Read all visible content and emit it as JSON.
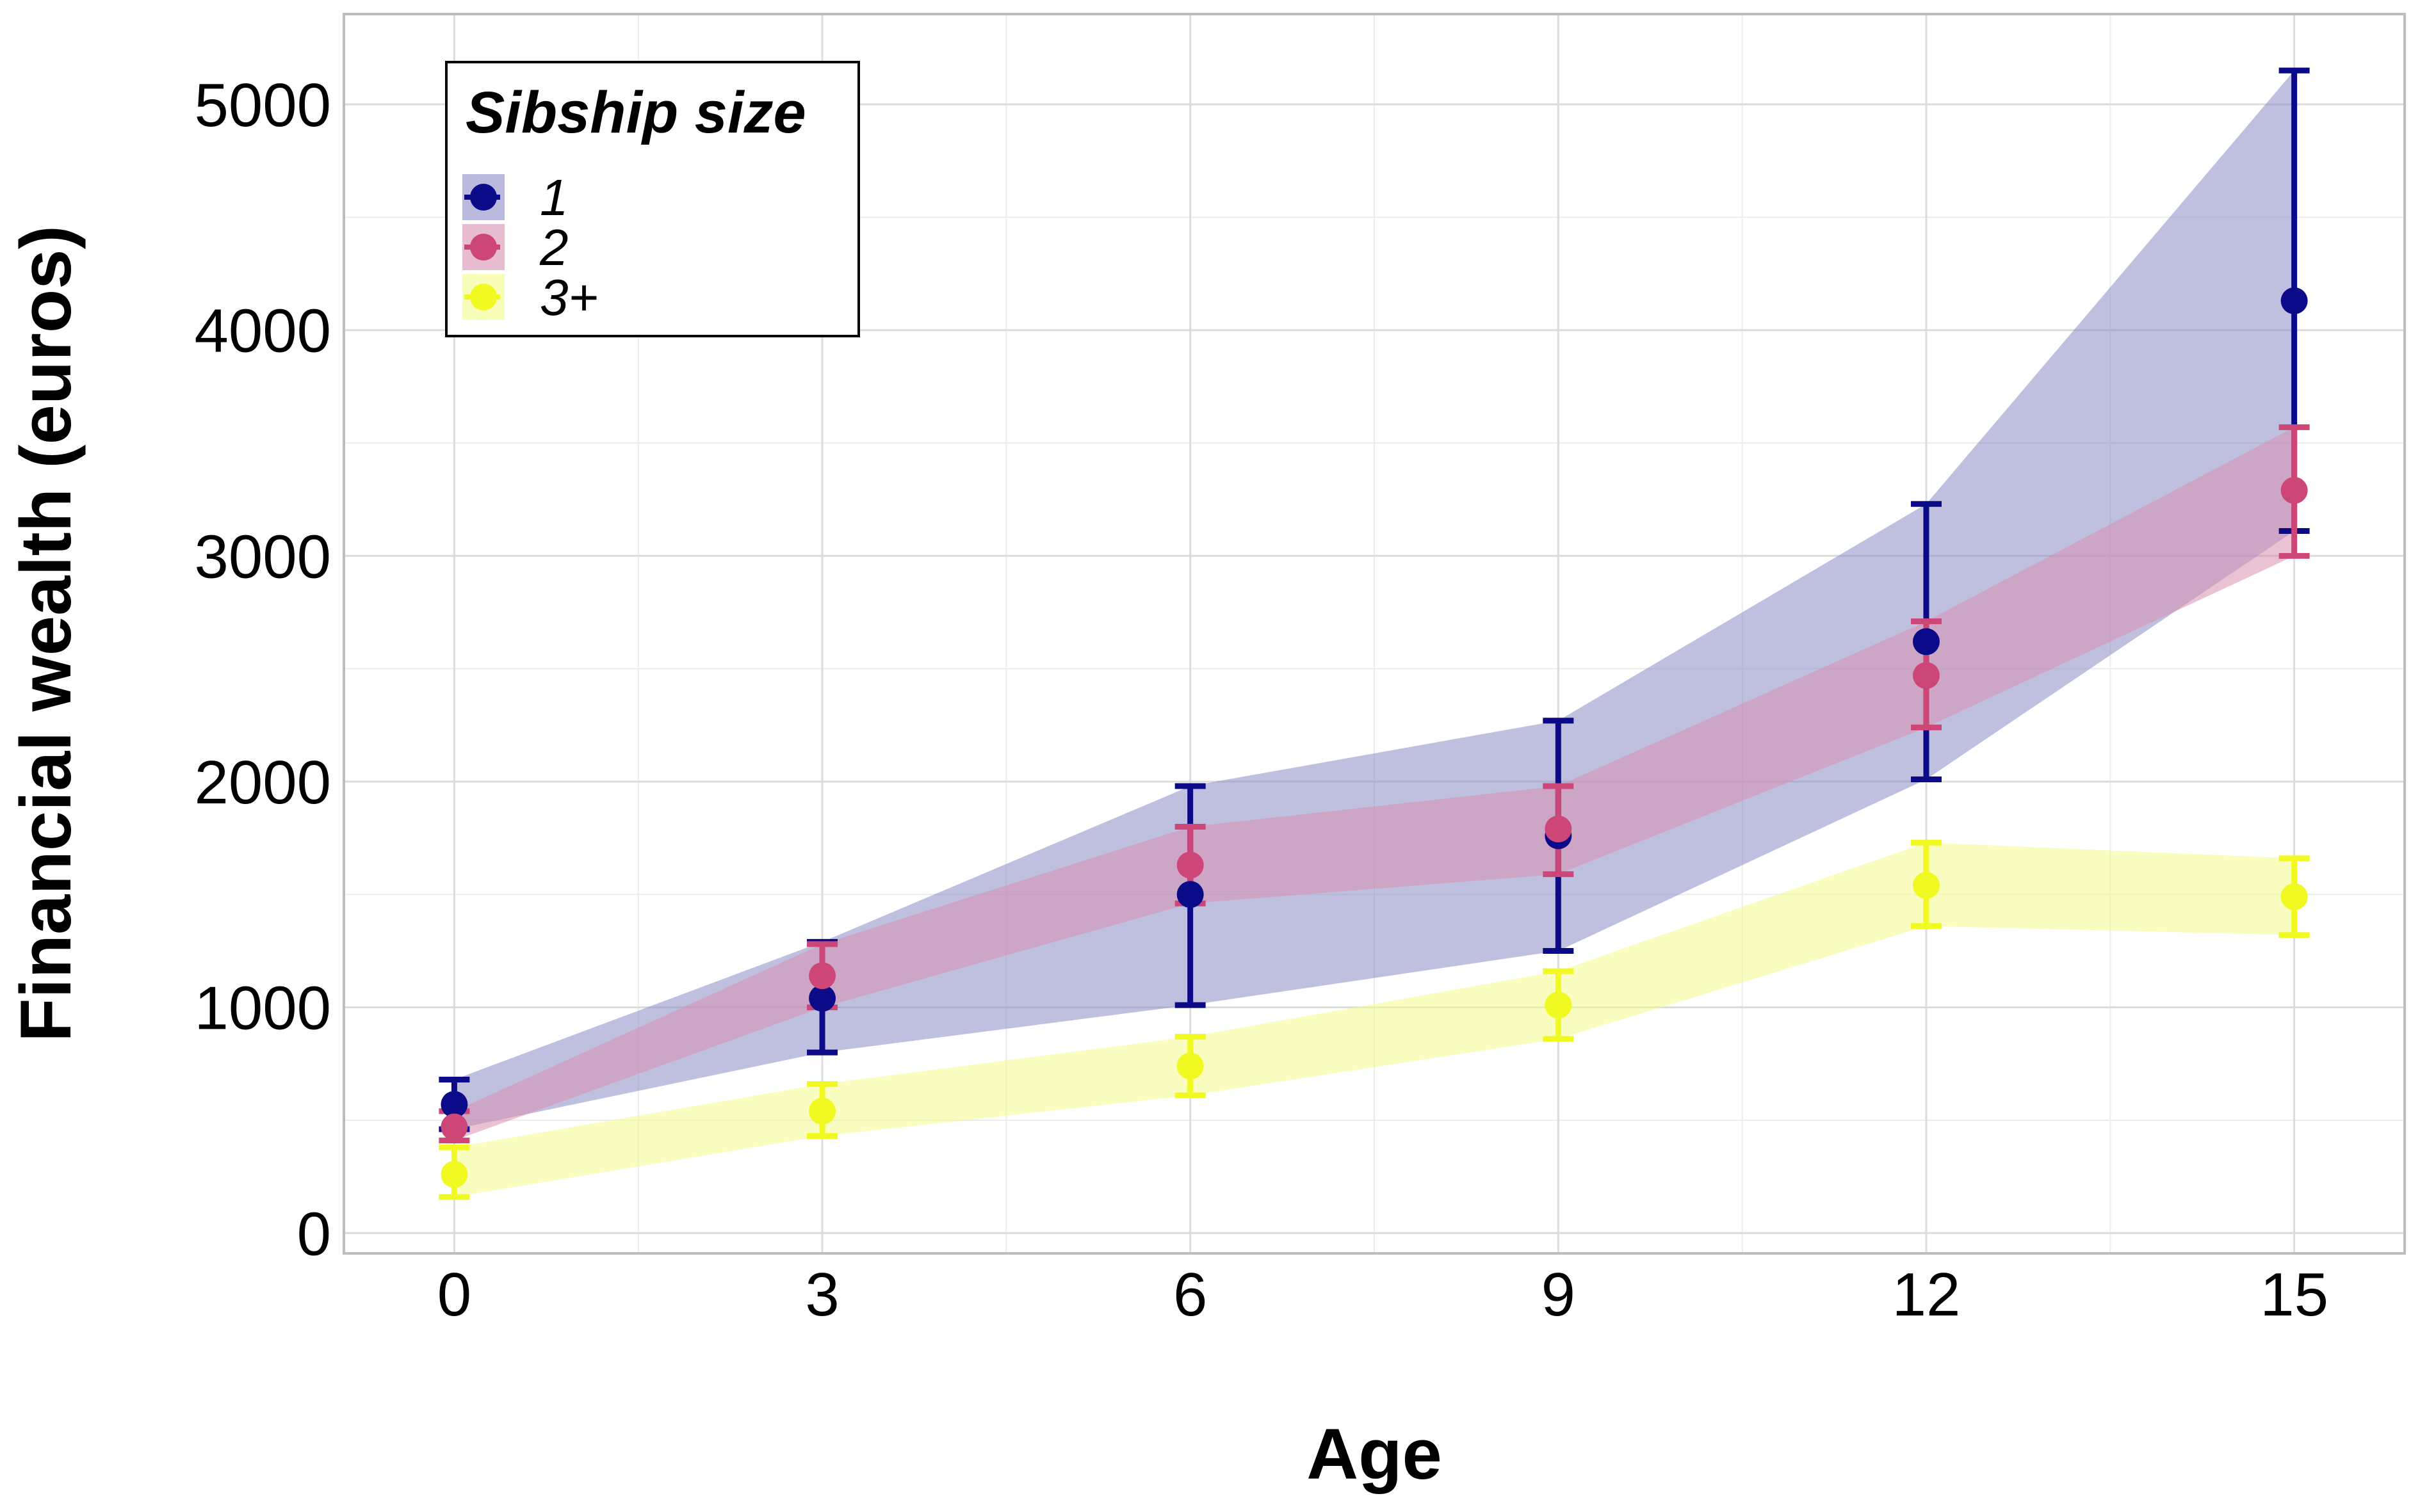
{
  "chart_data": {
    "type": "line",
    "xlabel": "Age",
    "ylabel": "Financial wealth (euros)",
    "x": [
      0,
      3,
      6,
      9,
      12,
      15
    ],
    "xticks": [
      "0",
      "3",
      "6",
      "9",
      "12",
      "15"
    ],
    "yticks": [
      "0",
      "1000",
      "2000",
      "3000",
      "4000",
      "5000"
    ],
    "xlim": [
      -0.9,
      15.9
    ],
    "ylim": [
      -90,
      5400
    ],
    "grid": true,
    "legend": {
      "title": "Sibship size",
      "placement": "top-left"
    },
    "series": [
      {
        "name": "1",
        "color": "#0b0b8a",
        "band_color": "#8a8cc6",
        "values": [
          570,
          1040,
          1500,
          1760,
          2620,
          4130
        ],
        "lower": [
          460,
          800,
          1010,
          1250,
          2010,
          3110
        ],
        "upper": [
          680,
          1290,
          1980,
          2270,
          3230,
          5150
        ]
      },
      {
        "name": "2",
        "color": "#cc4778",
        "band_color": "#d98fb0",
        "values": [
          470,
          1140,
          1630,
          1790,
          2470,
          3290
        ],
        "lower": [
          410,
          1000,
          1460,
          1590,
          2240,
          3000
        ],
        "upper": [
          540,
          1280,
          1800,
          1980,
          2710,
          3570
        ]
      },
      {
        "name": "3+",
        "color": "#f0f921",
        "band_color": "#f4fb8a",
        "values": [
          260,
          540,
          740,
          1010,
          1540,
          1490
        ],
        "lower": [
          160,
          430,
          610,
          860,
          1360,
          1320
        ],
        "upper": [
          380,
          660,
          870,
          1160,
          1730,
          1660
        ]
      }
    ]
  }
}
